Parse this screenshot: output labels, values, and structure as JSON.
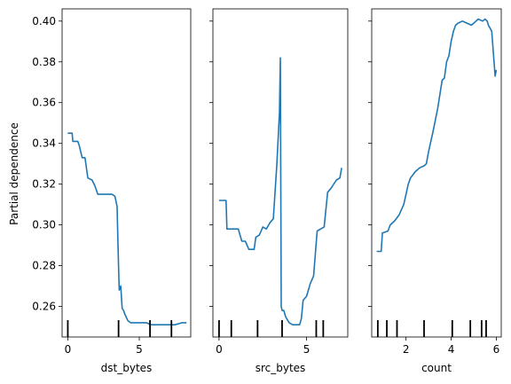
{
  "colors": {
    "series": "#1f77b4",
    "axes": "#000000",
    "background": "#ffffff"
  },
  "shared_y": {
    "label": "Partial dependence",
    "ylim": [
      0.245,
      0.406
    ],
    "ticks": [
      0.26,
      0.28,
      0.3,
      0.32,
      0.34,
      0.36,
      0.38,
      0.4
    ],
    "tick_labels": [
      "0.26",
      "0.28",
      "0.30",
      "0.32",
      "0.34",
      "0.36",
      "0.38",
      "0.40"
    ]
  },
  "chart_data": [
    {
      "type": "line",
      "xlabel": "dst_bytes",
      "ylabel": "Partial dependence",
      "xlim": [
        -0.4,
        8.6
      ],
      "ylim": [
        0.245,
        0.406
      ],
      "xticks": [
        0,
        5
      ],
      "xtick_labels": [
        "0",
        "5"
      ],
      "show_ytick_labels": true,
      "grid": false,
      "series": [
        {
          "x": [
            0,
            0.3,
            0.35,
            0.7,
            0.8,
            1.0,
            1.2,
            1.4,
            1.7,
            1.9,
            2.0,
            2.1,
            2.3,
            2.7,
            3.0,
            3.1,
            3.3,
            3.45,
            3.5,
            3.55,
            3.6,
            3.7,
            3.8,
            3.9,
            4.0,
            4.2,
            4.4,
            4.6,
            5.0,
            5.5,
            5.8,
            6.0,
            6.5,
            7.0,
            7.5,
            8.0,
            8.3
          ],
          "y": [
            0.345,
            0.345,
            0.341,
            0.341,
            0.339,
            0.333,
            0.333,
            0.323,
            0.322,
            0.319,
            0.317,
            0.315,
            0.315,
            0.315,
            0.315,
            0.315,
            0.314,
            0.309,
            0.294,
            0.28,
            0.268,
            0.27,
            0.259,
            0.258,
            0.256,
            0.253,
            0.252,
            0.252,
            0.252,
            0.252,
            0.251,
            0.251,
            0.251,
            0.251,
            0.251,
            0.252,
            0.252
          ]
        }
      ],
      "rug": [
        0,
        3.55,
        5.75,
        7.25
      ]
    },
    {
      "type": "line",
      "xlabel": "src_bytes",
      "ylabel": "",
      "xlim": [
        -0.35,
        7.35
      ],
      "ylim": [
        0.245,
        0.406
      ],
      "xticks": [
        0,
        5
      ],
      "xtick_labels": [
        "0",
        "5"
      ],
      "show_ytick_labels": false,
      "grid": false,
      "series": [
        {
          "x": [
            0,
            0.4,
            0.45,
            1.0,
            1.1,
            1.3,
            1.5,
            1.7,
            2.0,
            2.1,
            2.3,
            2.5,
            2.7,
            2.9,
            3.1,
            3.3,
            3.45,
            3.5,
            3.55,
            3.6,
            3.7,
            3.8,
            4.0,
            4.2,
            4.4,
            4.6,
            4.7,
            4.8,
            5.0,
            5.2,
            5.4,
            5.6,
            5.8,
            6.0,
            6.2,
            6.4,
            6.7,
            6.9,
            7.0
          ],
          "y": [
            0.312,
            0.312,
            0.298,
            0.298,
            0.298,
            0.292,
            0.292,
            0.288,
            0.288,
            0.294,
            0.295,
            0.299,
            0.298,
            0.301,
            0.303,
            0.33,
            0.355,
            0.382,
            0.26,
            0.258,
            0.258,
            0.255,
            0.252,
            0.251,
            0.251,
            0.251,
            0.254,
            0.263,
            0.265,
            0.271,
            0.275,
            0.297,
            0.298,
            0.299,
            0.316,
            0.318,
            0.322,
            0.323,
            0.328
          ]
        }
      ],
      "rug": [
        0,
        0.7,
        2.2,
        3.6,
        5.55,
        5.95
      ]
    },
    {
      "type": "line",
      "xlabel": "count",
      "ylabel": "",
      "xlim": [
        0.48,
        6.22
      ],
      "ylim": [
        0.245,
        0.406
      ],
      "xticks": [
        2,
        4,
        6
      ],
      "xtick_labels": [
        "2",
        "4",
        "6"
      ],
      "show_ytick_labels": false,
      "grid": false,
      "series": [
        {
          "x": [
            0.7,
            0.9,
            0.95,
            1.2,
            1.3,
            1.5,
            1.7,
            1.9,
            2.0,
            2.1,
            2.2,
            2.4,
            2.6,
            2.8,
            2.9,
            3.0,
            3.2,
            3.4,
            3.6,
            3.7,
            3.8,
            3.9,
            4.0,
            4.1,
            4.2,
            4.3,
            4.5,
            4.7,
            4.9,
            5.0,
            5.1,
            5.2,
            5.4,
            5.5,
            5.6,
            5.65,
            5.7,
            5.8,
            5.9,
            5.95,
            6.0
          ],
          "y": [
            0.287,
            0.287,
            0.296,
            0.297,
            0.3,
            0.302,
            0.305,
            0.31,
            0.315,
            0.32,
            0.323,
            0.326,
            0.328,
            0.329,
            0.33,
            0.336,
            0.346,
            0.357,
            0.371,
            0.372,
            0.38,
            0.383,
            0.39,
            0.395,
            0.398,
            0.399,
            0.4,
            0.399,
            0.398,
            0.399,
            0.4,
            0.401,
            0.4,
            0.401,
            0.4,
            0.398,
            0.397,
            0.395,
            0.38,
            0.373,
            0.376
          ]
        }
      ],
      "rug": [
        0.75,
        1.15,
        1.6,
        2.8,
        4.05,
        4.85,
        5.35,
        5.55
      ]
    }
  ]
}
